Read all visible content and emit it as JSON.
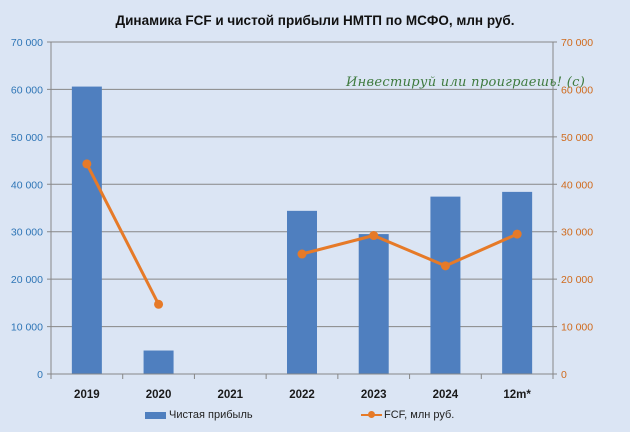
{
  "chart_data": {
    "type": "bar+line",
    "title": "Динамика FCF и чистой прибыли НМТП по МСФО, млн руб.",
    "watermark": "Инвестируй или проиграешь! (с)",
    "categories": [
      "2019",
      "2020",
      "2021",
      "2022",
      "2023",
      "2024",
      "12m*"
    ],
    "series": [
      {
        "name": "Чистая прибыль",
        "type": "bar",
        "axis": "left",
        "color": "#4f7fbf",
        "values": [
          60600,
          4950,
          null,
          34400,
          29500,
          37400,
          38400
        ]
      },
      {
        "name": "FCF, млн руб.",
        "type": "line",
        "axis": "right",
        "color": "#e67a28",
        "values": [
          44300,
          14700,
          null,
          25300,
          29200,
          22800,
          29500
        ]
      }
    ],
    "left_axis": {
      "ylim": [
        0,
        70000
      ],
      "ticks": [
        "0",
        "10 000",
        "20 000",
        "30 000",
        "40 000",
        "50 000",
        "60 000",
        "70 000"
      ],
      "color": "#2e75b6"
    },
    "right_axis": {
      "ylim": [
        0,
        70000
      ],
      "ticks": [
        "0",
        "10 000",
        "20 000",
        "30 000",
        "40 000",
        "50 000",
        "60 000",
        "70 000"
      ],
      "color": "#d06a1c"
    },
    "grid": true,
    "legend_position": "bottom",
    "xlabel": "",
    "ylabel": ""
  },
  "legend": {
    "bar_label": "Чистая прибыль",
    "line_label": "FCF, млн руб."
  }
}
